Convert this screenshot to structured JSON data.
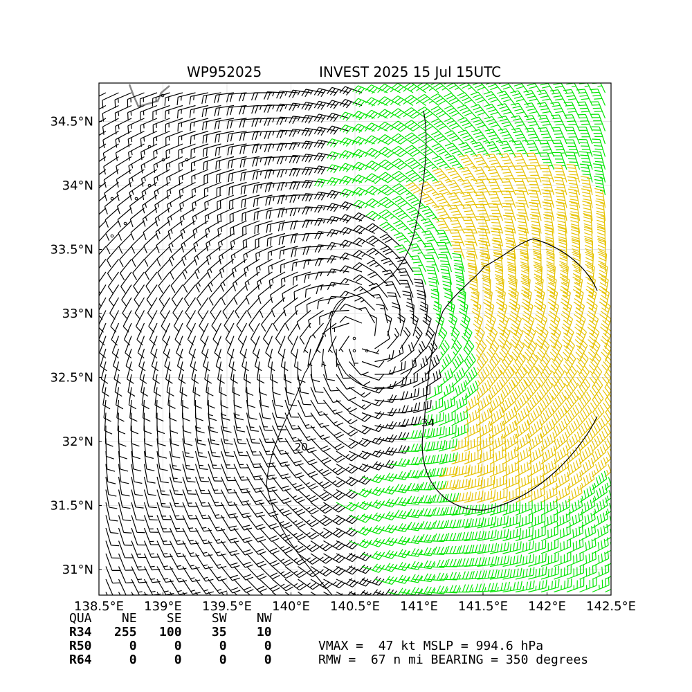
{
  "title_left": "WP952025",
  "title_right": "INVEST 2025 15 Jul 15UTC",
  "colors": {
    "ts_wind": "#00e600",
    "strong_wind": "#e6c200",
    "light_wind": "#000000",
    "coast": "#888888",
    "grid": "#dddddd"
  },
  "chart_data": {
    "type": "wind-barb-map",
    "xlim": [
      138.5,
      142.5
    ],
    "ylim": [
      30.8,
      34.8
    ],
    "x_ticks": [
      {
        "v": 138.5,
        "label": "138.5°E"
      },
      {
        "v": 139.0,
        "label": "139°E"
      },
      {
        "v": 139.5,
        "label": "139.5°E"
      },
      {
        "v": 140.0,
        "label": "140°E"
      },
      {
        "v": 140.5,
        "label": "140.5°E"
      },
      {
        "v": 141.0,
        "label": "141°E"
      },
      {
        "v": 141.5,
        "label": "141.5°E"
      },
      {
        "v": 142.0,
        "label": "142°E"
      },
      {
        "v": 142.5,
        "label": "142.5°E"
      }
    ],
    "y_ticks": [
      {
        "v": 31.0,
        "label": "31°N"
      },
      {
        "v": 31.5,
        "label": "31.5°N"
      },
      {
        "v": 32.0,
        "label": "32°N"
      },
      {
        "v": 32.5,
        "label": "32.5°N"
      },
      {
        "v": 33.0,
        "label": "33°N"
      },
      {
        "v": 33.5,
        "label": "33.5°N"
      },
      {
        "v": 34.0,
        "label": "34°N"
      },
      {
        "v": 34.5,
        "label": "34.5°N"
      }
    ],
    "grid": true,
    "storm_center": [
      140.55,
      32.8
    ],
    "contour_labels": [
      {
        "text": "34",
        "lon": 141.07,
        "lat": 32.12
      },
      {
        "text": "20",
        "lon": 140.08,
        "lat": 31.93
      }
    ],
    "wind_radii": {
      "quadrants": [
        "NE",
        "SE",
        "SW",
        "NW"
      ],
      "R34": [
        255,
        100,
        35,
        10
      ],
      "R50": [
        0,
        0,
        0,
        0
      ],
      "R64": [
        0,
        0,
        0,
        0
      ]
    },
    "vmax_kt": 47,
    "mslp_hpa": 994.6,
    "rmw_nmi": 67,
    "bearing_deg": 350
  },
  "table": {
    "header": "QUA    NE    SE    SW    NW",
    "r34": "R34   255   100    35    10",
    "r50": "R50     0     0     0     0",
    "r64": "R64     0     0     0     0"
  },
  "stats": {
    "line1": "VMAX =  47 kt MSLP = 994.6 hPa",
    "line2": "RMW =  67 n mi BEARING = 350 degrees"
  }
}
